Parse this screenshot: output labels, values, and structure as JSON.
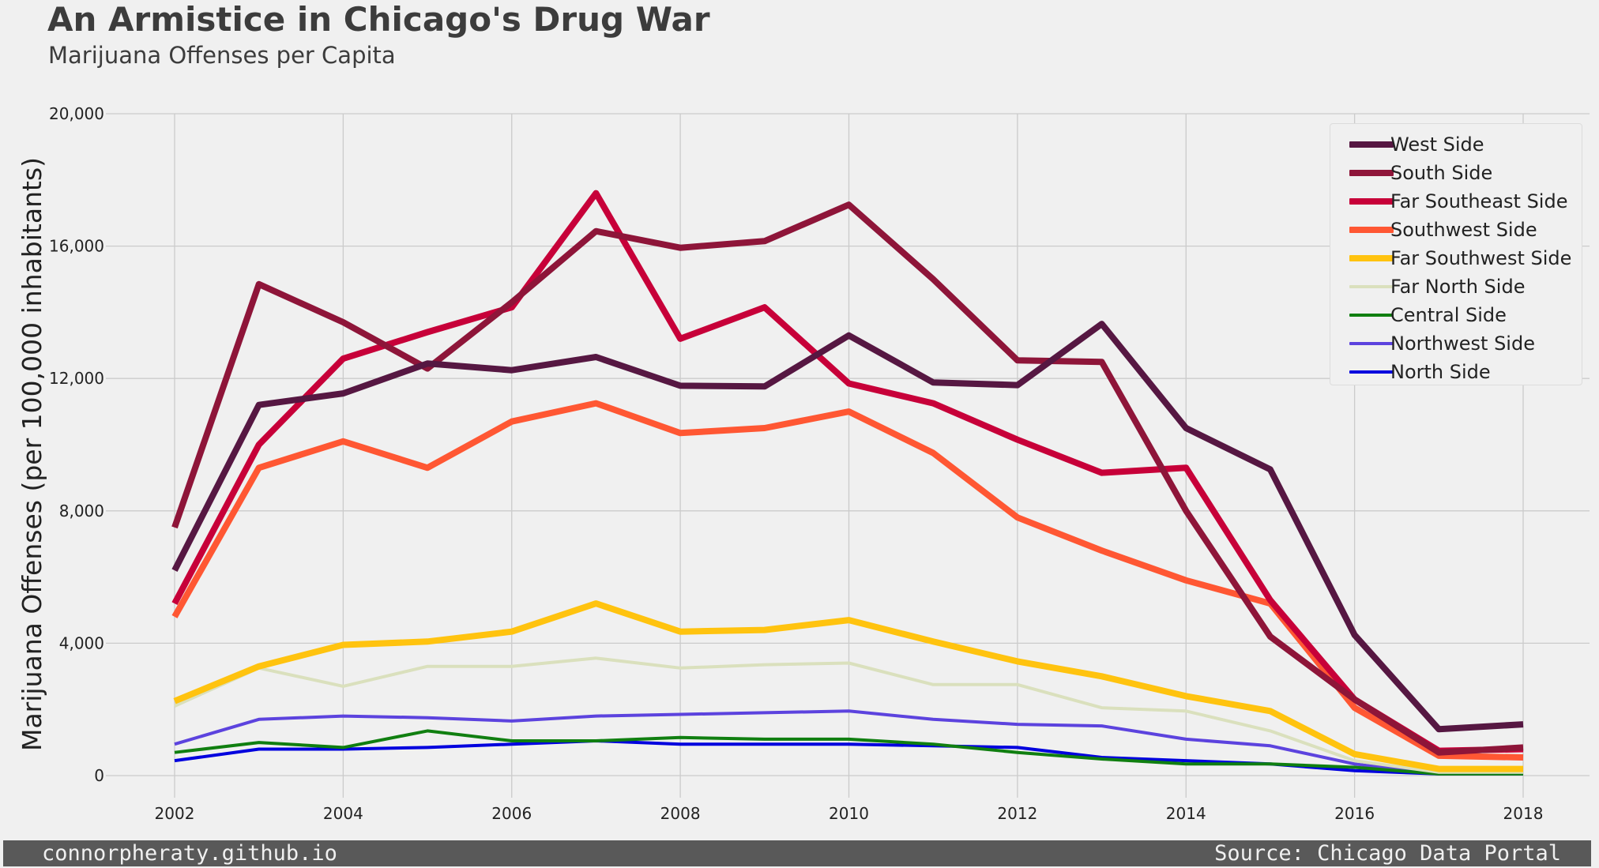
{
  "header": {
    "title": "An Armistice in Chicago's Drug War",
    "subtitle": "Marijuana Offenses per Capita"
  },
  "footer": {
    "left": "connorpheraty.github.io",
    "right": "Source: Chicago Data Portal"
  },
  "chart_data": {
    "type": "line",
    "title": "An Armistice in Chicago's Drug War",
    "subtitle": "Marijuana Offenses per Capita",
    "xlabel": "",
    "ylabel": "Marijuana Offenses (per 100,000 inhabitants)",
    "xlim": [
      2001.25,
      2018.8
    ],
    "ylim": [
      -400,
      20000
    ],
    "x_ticks": [
      2002,
      2004,
      2006,
      2008,
      2010,
      2012,
      2014,
      2016,
      2018
    ],
    "y_ticks": [
      0,
      4000,
      8000,
      12000,
      16000,
      20000
    ],
    "y_tick_labels": [
      "0",
      "4,000",
      "8,000",
      "12,000",
      "16,000",
      "20,000"
    ],
    "grid": true,
    "legend_position": "top-right",
    "x": [
      2002,
      2003,
      2004,
      2005,
      2006,
      2007,
      2008,
      2009,
      2010,
      2011,
      2012,
      2013,
      2014,
      2015,
      2016,
      2017,
      2018
    ],
    "series": [
      {
        "name": "West Side",
        "color": "#561742",
        "width": "thick",
        "values": [
          6200,
          11200,
          11550,
          12450,
          12250,
          12650,
          11780,
          11760,
          13300,
          11880,
          11800,
          13650,
          10500,
          9250,
          4250,
          1400,
          1550
        ]
      },
      {
        "name": "South Side",
        "color": "#8e1539",
        "width": "thick",
        "values": [
          7500,
          14850,
          13700,
          12300,
          14300,
          16450,
          15950,
          16150,
          17250,
          15000,
          12550,
          12500,
          8000,
          4200,
          2300,
          700,
          850
        ]
      },
      {
        "name": "Far Southeast Side",
        "color": "#c70039",
        "width": "thick",
        "values": [
          5200,
          10000,
          12600,
          13400,
          14150,
          17600,
          13200,
          14150,
          11850,
          11250,
          10150,
          9150,
          9300,
          5300,
          2300,
          750,
          800
        ]
      },
      {
        "name": "Southwest Side",
        "color": "#ff5733",
        "width": "thick",
        "values": [
          4800,
          9300,
          10100,
          9300,
          10700,
          11250,
          10350,
          10500,
          11000,
          9750,
          7800,
          6800,
          5900,
          5200,
          2050,
          600,
          550
        ]
      },
      {
        "name": "Far Southwest Side",
        "color": "#ffc30f",
        "width": "thick",
        "values": [
          2250,
          3300,
          3950,
          4050,
          4350,
          5200,
          4350,
          4400,
          4700,
          4050,
          3450,
          3000,
          2400,
          1950,
          650,
          200,
          200
        ]
      },
      {
        "name": "Far North Side",
        "color": "#dae0bd",
        "width": "thin",
        "values": [
          2100,
          3250,
          2700,
          3300,
          3300,
          3550,
          3250,
          3350,
          3400,
          2750,
          2750,
          2050,
          1950,
          1350,
          450,
          100,
          100
        ]
      },
      {
        "name": "Central Side",
        "color": "#107f10",
        "width": "thin",
        "values": [
          700,
          1000,
          850,
          1350,
          1050,
          1050,
          1150,
          1100,
          1100,
          950,
          700,
          500,
          350,
          350,
          250,
          50,
          50
        ]
      },
      {
        "name": "Northwest Side",
        "color": "#5c43de",
        "width": "thin",
        "values": [
          950,
          1700,
          1800,
          1750,
          1650,
          1800,
          1850,
          1900,
          1950,
          1700,
          1550,
          1500,
          1100,
          900,
          350,
          50,
          50
        ]
      },
      {
        "name": "North Side",
        "color": "#0000de",
        "width": "thin",
        "values": [
          450,
          800,
          800,
          850,
          950,
          1050,
          950,
          950,
          950,
          900,
          850,
          550,
          450,
          350,
          150,
          50,
          50
        ]
      }
    ]
  }
}
